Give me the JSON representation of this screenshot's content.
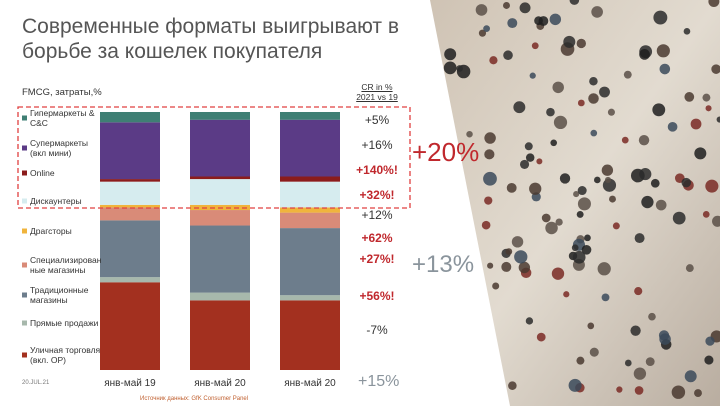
{
  "chart_data": {
    "type": "bar",
    "stacked": true,
    "title": "Современные форматы выигрывают в борьбе за кошелек покупателя",
    "y_label": "FMCG, затраты,%",
    "cr_header": "CR in % 2021 vs 19",
    "categories": [
      "янв-май 19",
      "янв-май 20",
      "янв-май 20"
    ],
    "ylim": [
      0,
      100
    ],
    "series": [
      {
        "name": "Гипермаркеты & C&C",
        "color": "#3f7f74",
        "values": [
          4,
          3,
          3
        ],
        "cr": "+5%",
        "cr_color": "#333333"
      },
      {
        "name": "Супермаркеты (вкл мини)",
        "color": "#5b3b86",
        "values": [
          22,
          22,
          22
        ],
        "cr": "+16%",
        "cr_color": "#333333"
      },
      {
        "name": "Online",
        "color": "#8b1c1c",
        "values": [
          1,
          1,
          2
        ],
        "cr": "+140%!",
        "cr_color": "#c0282d"
      },
      {
        "name": "Дискаунтеры",
        "color": "#d6ecef",
        "values": [
          9,
          10,
          10
        ],
        "cr": "+32%!",
        "cr_color": "#c0282d"
      },
      {
        "name": "Драгсторы",
        "color": "#f0b43c",
        "values": [
          1,
          2,
          2
        ],
        "cr": "+12%",
        "cr_color": "#333333"
      },
      {
        "name": "Специализированные магазины",
        "color": "#d98b78",
        "values": [
          5,
          6,
          6
        ],
        "cr": "+62%",
        "cr_color": "#c0282d"
      },
      {
        "name": "Традиционные магазины",
        "color": "#6d7d8c",
        "values": [
          22,
          26,
          26
        ],
        "cr": "+27%!",
        "cr_color": "#c0282d"
      },
      {
        "name": "Прямые продажи",
        "color": "#a7b8ac",
        "values": [
          2,
          3,
          2
        ],
        "cr": "+56%!",
        "cr_color": "#c0282d"
      },
      {
        "name": "Уличная торговля (вкл. ОР)",
        "color": "#a3301f",
        "values": [
          34,
          27,
          27
        ],
        "cr": "-7%",
        "cr_color": "#333333"
      }
    ],
    "annotations": [
      {
        "text": "+20%",
        "color": "#c0282d"
      },
      {
        "text": "+13%",
        "color": "#8a949c"
      },
      {
        "text": "+15%",
        "color": "#8a949c"
      }
    ],
    "date": "20.JUL.21",
    "source": "Источник данных: GfK Consumer Panel"
  }
}
